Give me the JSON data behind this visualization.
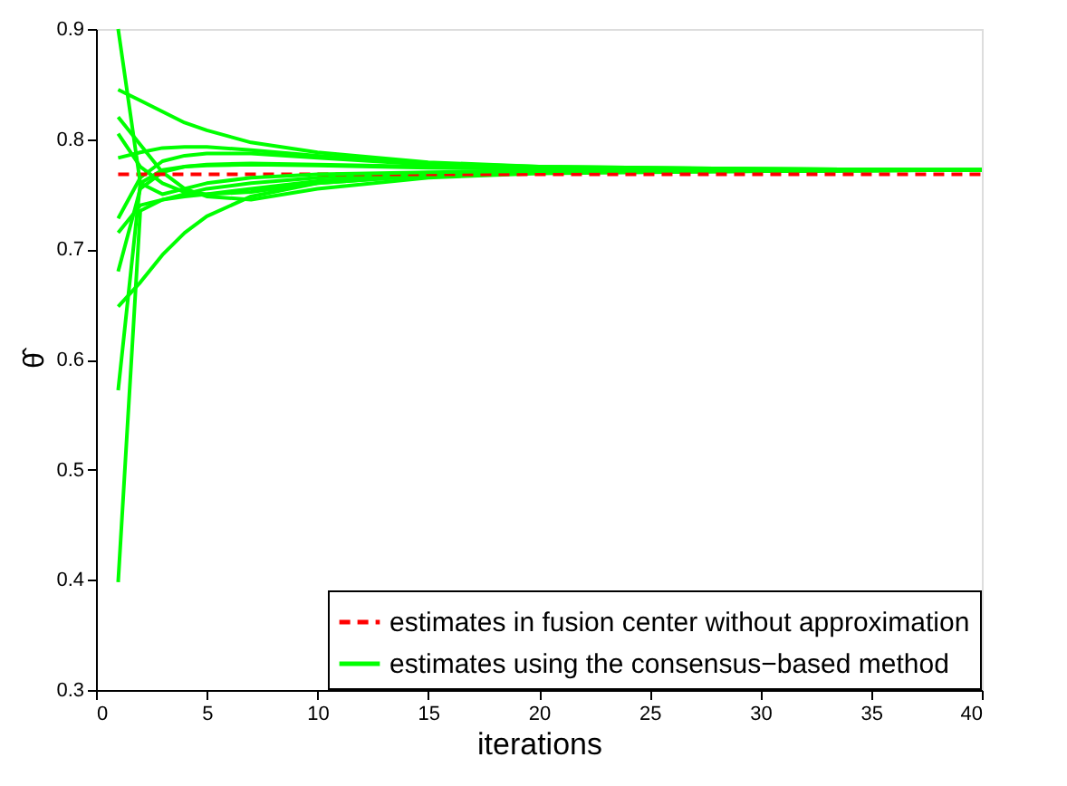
{
  "chart_data": {
    "type": "line",
    "xlabel": "iterations",
    "ylabel": "θ̂",
    "x": [
      1,
      2,
      3,
      4,
      5,
      7,
      10,
      15,
      20,
      30,
      40
    ],
    "xlim": [
      0,
      40
    ],
    "xticks": [
      0,
      5,
      10,
      15,
      20,
      25,
      30,
      35,
      40
    ],
    "ylim": [
      0.3,
      0.9
    ],
    "yticks": [
      0.3,
      0.4,
      0.5,
      0.6,
      0.7,
      0.8,
      0.9
    ],
    "grid": false,
    "legend": "bottom right",
    "series": [
      {
        "name": "estimates in fusion center without approximation",
        "color": "#ff0000",
        "line_style": "dashed",
        "x": [
          1,
          40
        ],
        "values": [
          0.768,
          0.768
        ]
      },
      {
        "name": "estimates using the consensus−based method",
        "color": "#00ff00",
        "line_style": "solid",
        "values": [
          0.9,
          0.76,
          0.75,
          0.755,
          0.76,
          0.765,
          0.768,
          0.77,
          0.771,
          0.772,
          0.772
        ]
      },
      {
        "color": "#00ff00",
        "line_style": "solid",
        "values": [
          0.845,
          0.835,
          0.825,
          0.815,
          0.808,
          0.797,
          0.788,
          0.779,
          0.775,
          0.773,
          0.772
        ]
      },
      {
        "color": "#00ff00",
        "line_style": "solid",
        "values": [
          0.82,
          0.795,
          0.77,
          0.755,
          0.748,
          0.745,
          0.755,
          0.765,
          0.769,
          0.771,
          0.772
        ]
      },
      {
        "color": "#00ff00",
        "line_style": "solid",
        "values": [
          0.805,
          0.775,
          0.76,
          0.752,
          0.75,
          0.752,
          0.76,
          0.767,
          0.77,
          0.771,
          0.772
        ]
      },
      {
        "color": "#00ff00",
        "line_style": "solid",
        "values": [
          0.783,
          0.788,
          0.792,
          0.793,
          0.793,
          0.79,
          0.785,
          0.778,
          0.775,
          0.773,
          0.772
        ]
      },
      {
        "color": "#00ff00",
        "line_style": "solid",
        "values": [
          0.728,
          0.765,
          0.78,
          0.785,
          0.787,
          0.787,
          0.783,
          0.777,
          0.774,
          0.773,
          0.772
        ]
      },
      {
        "color": "#00ff00",
        "line_style": "solid",
        "values": [
          0.715,
          0.74,
          0.745,
          0.748,
          0.75,
          0.755,
          0.762,
          0.768,
          0.77,
          0.771,
          0.772
        ]
      },
      {
        "color": "#00ff00",
        "line_style": "solid",
        "values": [
          0.68,
          0.755,
          0.77,
          0.775,
          0.777,
          0.778,
          0.777,
          0.775,
          0.773,
          0.772,
          0.772
        ]
      },
      {
        "color": "#00ff00",
        "line_style": "solid",
        "values": [
          0.648,
          0.67,
          0.695,
          0.715,
          0.73,
          0.748,
          0.76,
          0.767,
          0.77,
          0.771,
          0.772
        ]
      },
      {
        "color": "#00ff00",
        "line_style": "solid",
        "values": [
          0.572,
          0.76,
          0.772,
          0.775,
          0.776,
          0.777,
          0.776,
          0.774,
          0.773,
          0.772,
          0.772
        ]
      },
      {
        "color": "#00ff00",
        "line_style": "solid",
        "values": [
          0.398,
          0.735,
          0.745,
          0.75,
          0.755,
          0.76,
          0.765,
          0.769,
          0.771,
          0.772,
          0.772
        ]
      }
    ]
  }
}
